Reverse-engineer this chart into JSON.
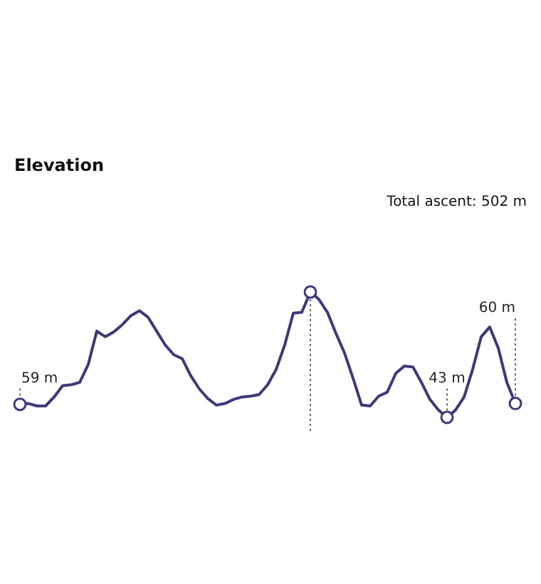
{
  "chart_data": {
    "type": "line",
    "title": "Elevation",
    "annotations": [
      "Total ascent: 502 m"
    ],
    "categories": [
      null,
      null,
      null,
      null,
      null,
      null,
      null,
      null,
      null,
      null,
      null,
      null,
      null,
      null,
      null,
      null,
      null,
      null,
      null,
      null,
      null,
      null,
      null,
      null,
      null,
      null,
      null,
      null,
      null,
      null,
      null,
      null,
      null,
      null,
      null,
      null,
      null,
      null,
      null,
      null,
      null,
      null,
      null,
      null,
      null,
      null,
      null,
      null,
      null,
      null,
      null,
      null,
      null,
      null,
      null,
      null,
      null,
      null,
      null
    ],
    "series": [
      {
        "color": "#3d3a7a",
        "values": [
          59,
          60,
          57,
          57,
          68,
          82,
          83,
          86,
          108,
          149,
          142,
          148,
          157,
          168,
          174,
          166,
          149,
          132,
          120,
          115,
          94,
          78,
          66,
          58,
          60,
          65,
          68,
          69,
          71,
          83,
          102,
          132,
          171,
          172,
          197,
          188,
          172,
          146,
          122,
          91,
          58,
          57,
          69,
          74,
          97,
          106,
          105,
          86,
          65,
          52,
          43,
          52,
          68,
          102,
          142,
          154,
          128,
          86,
          60
        ],
        "value_labels": [
          "59 m",
          null,
          null,
          null,
          null,
          null,
          null,
          null,
          null,
          null,
          null,
          null,
          null,
          null,
          null,
          null,
          null,
          null,
          null,
          null,
          null,
          null,
          null,
          null,
          null,
          null,
          null,
          null,
          null,
          null,
          null,
          null,
          null,
          null,
          null,
          null,
          null,
          null,
          null,
          null,
          null,
          null,
          null,
          null,
          null,
          null,
          null,
          null,
          null,
          null,
          "43 m",
          null,
          null,
          null,
          null,
          null,
          null,
          null,
          "60 m"
        ]
      }
    ],
    "tick_labels": false
  }
}
